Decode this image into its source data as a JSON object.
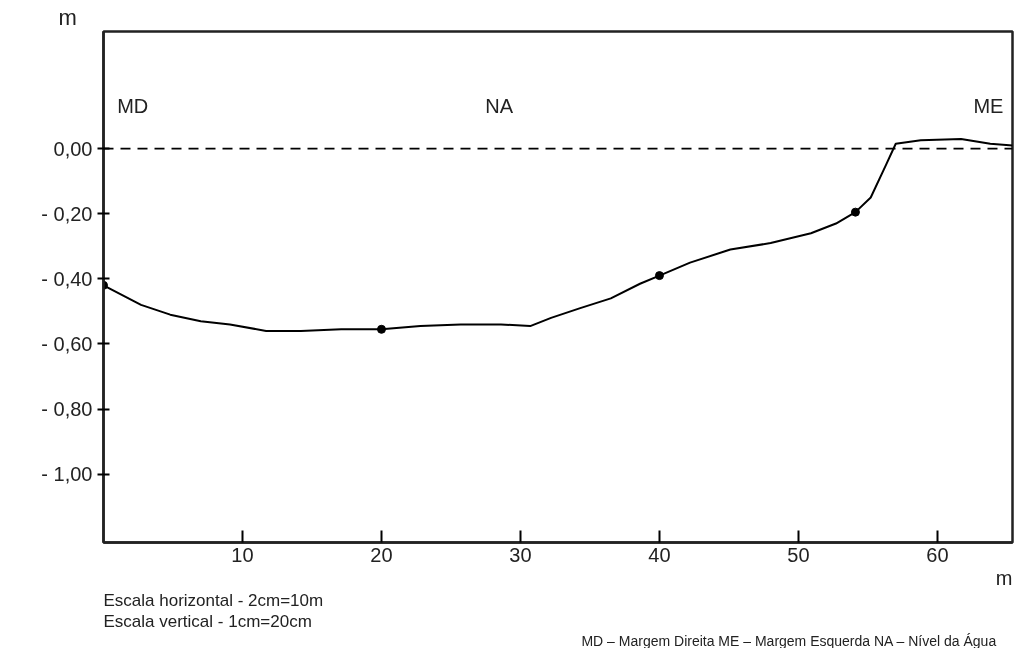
{
  "chart_data": {
    "type": "line",
    "xlabel": "m",
    "ylabel": "m",
    "series": [
      {
        "color": "#000000",
        "marker": "none",
        "line_style": "solid",
        "x": [
          0,
          2.7,
          4.8,
          7.0,
          9.1,
          11.7,
          14.2,
          17.1,
          20,
          22.8,
          25.7,
          28.6,
          30.7,
          32.2,
          34.3,
          36.5,
          38.6,
          40,
          42.2,
          45.1,
          48,
          50.9,
          52.7,
          54.1,
          55.2,
          56.3,
          57.0,
          58.8,
          61.7,
          63.8,
          65.4
        ],
        "values": [
          -0.42,
          -0.48,
          -0.51,
          -0.53,
          -0.54,
          -0.56,
          -0.56,
          -0.555,
          -0.555,
          -0.545,
          -0.54,
          -0.54,
          -0.545,
          -0.52,
          -0.49,
          -0.46,
          -0.415,
          -0.39,
          -0.35,
          -0.31,
          -0.29,
          -0.26,
          -0.23,
          -0.195,
          -0.15,
          -0.05,
          0.015,
          0.026,
          0.03,
          0.015,
          0.01
        ]
      },
      {
        "type": "scatter",
        "color": "#000000",
        "marker": "circle",
        "x": [
          0,
          20,
          40,
          54.1
        ],
        "values": [
          -0.42,
          -0.555,
          -0.39,
          -0.195
        ]
      }
    ],
    "xlim": [
      0,
      65.4
    ],
    "ylim": [
      -1.21,
      0.36
    ],
    "xticks": [
      10,
      20,
      30,
      40,
      50,
      60
    ],
    "yticks": [
      {
        "value": 0,
        "label": "0,00"
      },
      {
        "value": -0.2,
        "label": "- 0,20"
      },
      {
        "value": -0.4,
        "label": "- 0,40"
      },
      {
        "value": -0.6,
        "label": "- 0,60"
      },
      {
        "value": -0.8,
        "label": "- 0,80"
      },
      {
        "value": -1.0,
        "label": "- 1,00"
      }
    ],
    "ref_lines": [
      {
        "axis": "y",
        "value": 0,
        "label": null,
        "color": "#000000",
        "line_style": "dashed"
      }
    ],
    "annotations": [
      "MD",
      "NA",
      "ME",
      "Escala horizontal - 2cm=10m",
      "Escala vertical - 1cm=20cm",
      "MD – Margem Direita   ME – Margem Esquerda   NA – Nível da Água"
    ]
  }
}
